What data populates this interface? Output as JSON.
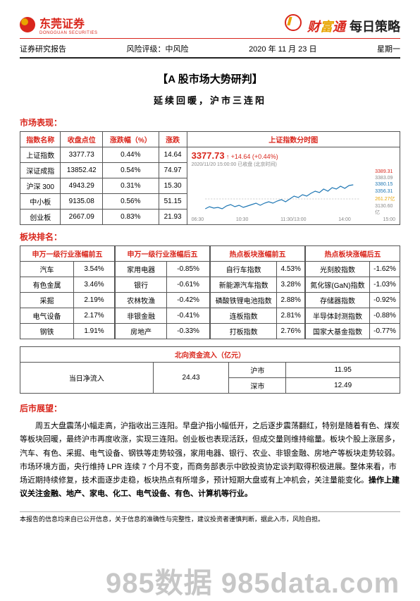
{
  "header": {
    "company": "东莞证券",
    "company_en": "DONGGUAN SECURITIES",
    "brand": {
      "cai": "财",
      "fu": "富",
      "tong": "通"
    },
    "daily": "每日策略"
  },
  "meta": {
    "col1": "证券研究报告",
    "col2": "风险评级：中风险",
    "col3": "2020 年 11 月 23 日",
    "col4": "星期一"
  },
  "title1": "【A 股市场大势研判】",
  "title2": "延续回暖，沪市三连阳",
  "market": {
    "heading": "市场表现：",
    "cols": [
      "指数名称",
      "收盘点位",
      "涨跌幅（%）",
      "涨跌"
    ],
    "rows": [
      [
        "上证指数",
        "3377.73",
        "0.44%",
        "14.64"
      ],
      [
        "深证成指",
        "13852.42",
        "0.54%",
        "74.97"
      ],
      [
        "沪深 300",
        "4943.29",
        "0.31%",
        "15.30"
      ],
      [
        "中小板",
        "9135.08",
        "0.56%",
        "51.15"
      ],
      [
        "创业板",
        "2667.09",
        "0.83%",
        "21.93"
      ]
    ],
    "chart_hd": "上证指数分时图",
    "chart": {
      "price": "3377.73",
      "arrow": "↑",
      "delta": "+14.64 (+0.44%)",
      "datetime": "2020/11/20 15:00:00  已收盘 (北京时间)",
      "y_ticks": [
        "3389.31",
        "3383.09",
        "3380.15",
        "3356.31"
      ],
      "y_ticks2": [
        "261.27亿",
        "3130.60亿"
      ],
      "x_ticks": [
        "06:30",
        "10:30",
        "11:30/13:00",
        "14:00",
        "15:00"
      ],
      "line_color": "#1f77b4",
      "bg": "#ffffff",
      "points": [
        [
          0,
          58
        ],
        [
          6,
          55
        ],
        [
          12,
          57
        ],
        [
          18,
          56
        ],
        [
          24,
          58
        ],
        [
          30,
          54
        ],
        [
          36,
          52
        ],
        [
          42,
          55
        ],
        [
          48,
          53
        ],
        [
          54,
          56
        ],
        [
          60,
          54
        ],
        [
          66,
          52
        ],
        [
          72,
          50
        ],
        [
          78,
          53
        ],
        [
          84,
          50
        ],
        [
          90,
          48
        ],
        [
          96,
          50
        ],
        [
          102,
          47
        ],
        [
          108,
          45
        ],
        [
          114,
          48
        ],
        [
          120,
          44
        ],
        [
          126,
          40
        ],
        [
          132,
          42
        ],
        [
          138,
          38
        ],
        [
          144,
          40
        ],
        [
          150,
          36
        ],
        [
          156,
          33
        ],
        [
          162,
          35
        ],
        [
          168,
          30
        ],
        [
          174,
          33
        ],
        [
          180,
          28
        ],
        [
          186,
          30
        ],
        [
          192,
          26
        ],
        [
          198,
          29
        ],
        [
          204,
          25
        ],
        [
          210,
          24
        ]
      ]
    }
  },
  "sector": {
    "heading": "板块排名：",
    "tables": [
      {
        "title": "申万一级行业涨幅前五",
        "rows": [
          [
            "汽车",
            "3.54%"
          ],
          [
            "有色金属",
            "3.46%"
          ],
          [
            "采掘",
            "2.19%"
          ],
          [
            "电气设备",
            "2.17%"
          ],
          [
            "钢铁",
            "1.91%"
          ]
        ]
      },
      {
        "title": "申万一级行业涨幅后五",
        "rows": [
          [
            "家用电器",
            "-0.85%"
          ],
          [
            "银行",
            "-0.61%"
          ],
          [
            "农林牧渔",
            "-0.42%"
          ],
          [
            "非银金融",
            "-0.41%"
          ],
          [
            "房地产",
            "-0.33%"
          ]
        ]
      },
      {
        "title": "热点板块涨幅前五",
        "rows": [
          [
            "自行车指数",
            "4.53%"
          ],
          [
            "新能源汽车指数",
            "3.28%"
          ],
          [
            "磷酸铁锂电池指数",
            "2.88%"
          ],
          [
            "连板指数",
            "2.81%"
          ],
          [
            "打板指数",
            "2.76%"
          ]
        ]
      },
      {
        "title": "热点板块涨幅后五",
        "rows": [
          [
            "光刻胶指数",
            "-1.62%"
          ],
          [
            "氮化镓(GaN)指数",
            "-1.03%"
          ],
          [
            "存储器指数",
            "-0.92%"
          ],
          [
            "半导体封测指数",
            "-0.88%"
          ],
          [
            "国家大基金指数",
            "-0.77%"
          ]
        ]
      }
    ]
  },
  "inflow": {
    "title": "北向资金流入（亿元）",
    "label": "当日净流入",
    "total": "24.43",
    "rows": [
      [
        "沪市",
        "11.95"
      ],
      [
        "深市",
        "12.49"
      ]
    ]
  },
  "outlook": {
    "heading": "后市展望：",
    "body": "周五大盘震荡小幅走高，沪指收出三连阳。早盘沪指小幅低开，之后逐步震荡翻红，特别是随着有色、煤炭等板块回暖，最终沪市再度收涨，实现三连阳。创业板也表现活跃，但成交量则维持缩量。板块个股上涨居多，汽车、有色、采掘、电气设备、钢铁等走势较强，家用电器、银行、农业、非银金融、房地产等板块走势较弱。市场环境方面，央行维持 LPR 连续 7 个月不变，而商务部表示中欧投资协定谈判取得积极进展。整体来看，市场近期持续修复，技术面逐步走稳，板块热点有所增多，预计短期大盘或有上冲机会，关注量能变化。",
    "bold": "操作上建议关注金融、地产、家电、化工、电气设备、有色、计算机等行业。"
  },
  "footer": "本报告的信息均来自已公开信息，关于信息的准确性与完整性，建议投资者谨慎判断，据此入市，风险自担。",
  "watermark": "985数据 985data.com"
}
